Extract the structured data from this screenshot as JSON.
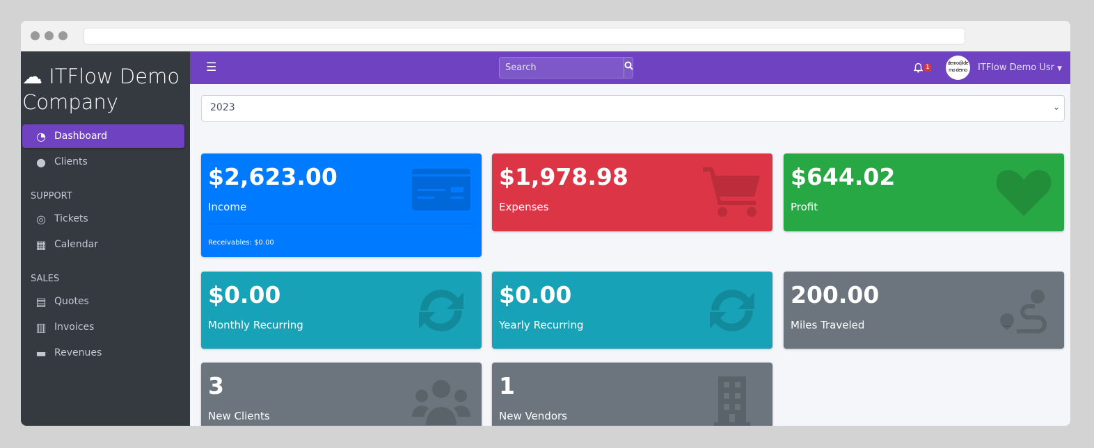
{
  "sidebar": {
    "brand": "ITFlow Demo Company",
    "items": [
      {
        "label": "Dashboard",
        "icon": "tachometer-icon",
        "active": true
      },
      {
        "label": "Clients",
        "icon": "users-icon"
      }
    ],
    "sections": [
      {
        "header": "SUPPORT",
        "items": [
          {
            "label": "Tickets",
            "icon": "life-ring-icon"
          },
          {
            "label": "Calendar",
            "icon": "calendar-icon"
          }
        ]
      },
      {
        "header": "SALES",
        "items": [
          {
            "label": "Quotes",
            "icon": "file-icon"
          },
          {
            "label": "Invoices",
            "icon": "invoice-icon"
          },
          {
            "label": "Revenues",
            "icon": "credit-card-icon"
          }
        ]
      }
    ]
  },
  "topbar": {
    "search_placeholder": "Search",
    "notification_count": "1",
    "avatar_text": "demo@demo demo",
    "user_name": "ITFlow Demo Usr"
  },
  "year_select": "2023",
  "cards": [
    {
      "value": "$2,623.00",
      "label": "Income",
      "footer": "Receivables: $0.00",
      "color": "#007bff",
      "icon": "credit-card-icon"
    },
    {
      "value": "$1,978.98",
      "label": "Expenses",
      "color": "#dc3545",
      "icon": "shopping-cart-icon"
    },
    {
      "value": "$644.02",
      "label": "Profit",
      "color": "#28a745",
      "icon": "heart-icon"
    },
    {
      "value": "$0.00",
      "label": "Monthly Recurring",
      "color": "#17a2b8",
      "icon": "sync-icon"
    },
    {
      "value": "$0.00",
      "label": "Yearly Recurring",
      "color": "#17a2b8",
      "icon": "sync-icon"
    },
    {
      "value": "200.00",
      "label": "Miles Traveled",
      "color": "#6c757d",
      "icon": "route-icon"
    },
    {
      "value": "3",
      "label": "New Clients",
      "color": "#6c757d",
      "icon": "users-icon"
    },
    {
      "value": "1",
      "label": "New Vendors",
      "color": "#6c757d",
      "icon": "building-icon"
    }
  ]
}
